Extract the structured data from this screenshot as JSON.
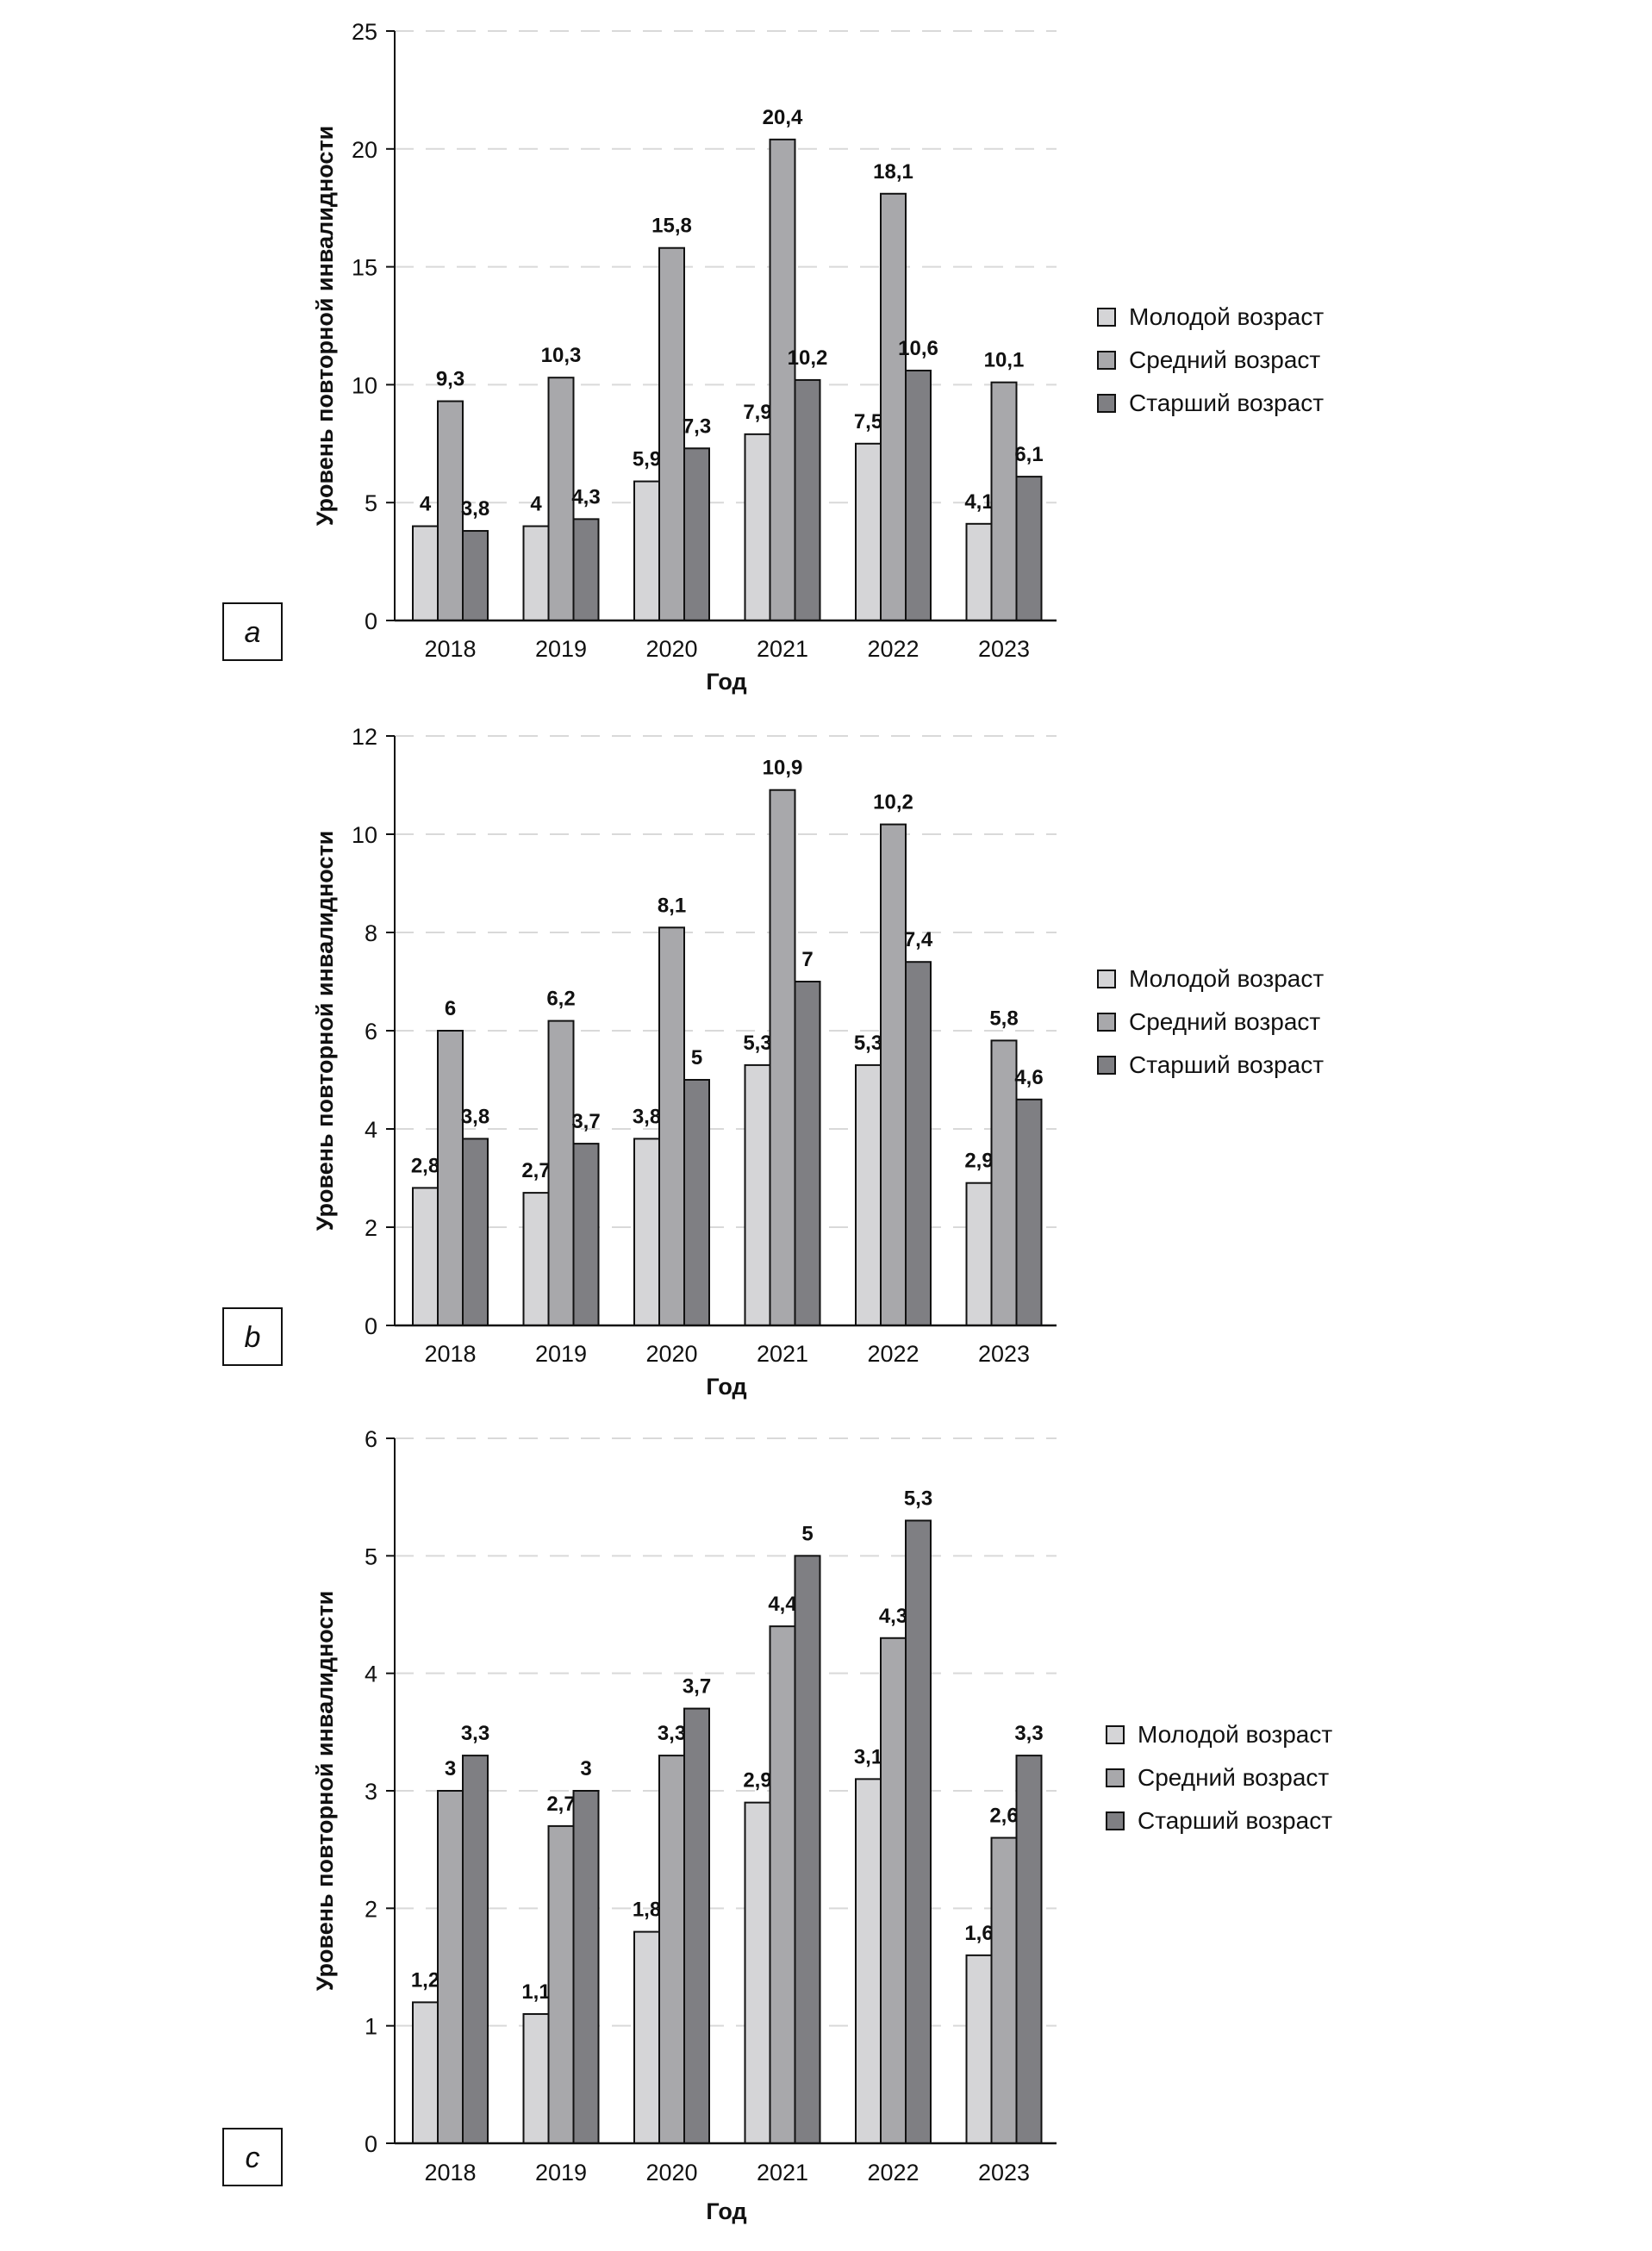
{
  "colors": {
    "young": "#d5d5d7",
    "middle": "#a8a8ab",
    "old": "#7f7f83",
    "grid": "#d9d9d9",
    "stroke": "#111111"
  },
  "chart_data": [
    {
      "type": "bar",
      "panel": "a",
      "xlabel": "Год",
      "ylabel": "Уровень повторной инвалидности",
      "ylim": [
        0,
        25
      ],
      "yticks": [
        0,
        5,
        10,
        15,
        20,
        25
      ],
      "grid": true,
      "legend_position": "right",
      "categories": [
        "2018",
        "2019",
        "2020",
        "2021",
        "2022",
        "2023"
      ],
      "series": [
        {
          "name": "Молодой возраст",
          "values": [
            4,
            4,
            5.9,
            7.9,
            7.5,
            4.1
          ],
          "labels": [
            "4",
            "4",
            "5,9",
            "7,9",
            "7,5",
            "4,1"
          ]
        },
        {
          "name": "Средний возраст",
          "values": [
            9.3,
            10.3,
            15.8,
            20.4,
            18.1,
            10.1
          ],
          "labels": [
            "9,3",
            "10,3",
            "15,8",
            "20,4",
            "18,1",
            "10,1"
          ]
        },
        {
          "name": "Старший возраст",
          "values": [
            3.8,
            4.3,
            7.3,
            10.2,
            10.6,
            6.1
          ],
          "labels": [
            "3,8",
            "4,3",
            "7,3",
            "10,2",
            "10,6",
            "6,1"
          ]
        }
      ]
    },
    {
      "type": "bar",
      "panel": "b",
      "xlabel": "Год",
      "ylabel": "Уровень повторной инвалидности",
      "ylim": [
        0,
        12
      ],
      "yticks": [
        0,
        2,
        4,
        6,
        8,
        10,
        12
      ],
      "grid": true,
      "legend_position": "right",
      "categories": [
        "2018",
        "2019",
        "2020",
        "2021",
        "2022",
        "2023"
      ],
      "series": [
        {
          "name": "Молодой возраст",
          "values": [
            2.8,
            2.7,
            3.8,
            5.3,
            5.3,
            2.9
          ],
          "labels": [
            "2,8",
            "2,7",
            "3,8",
            "5,3",
            "5,3",
            "2,9"
          ]
        },
        {
          "name": "Средний возраст",
          "values": [
            6,
            6.2,
            8.1,
            10.9,
            10.2,
            5.8
          ],
          "labels": [
            "6",
            "6,2",
            "8,1",
            "10,9",
            "10,2",
            "5,8"
          ]
        },
        {
          "name": "Старший возраст",
          "values": [
            3.8,
            3.7,
            5,
            7,
            7.4,
            4.6
          ],
          "labels": [
            "3,8",
            "3,7",
            "5",
            "7",
            "7,4",
            "4,6"
          ]
        }
      ]
    },
    {
      "type": "bar",
      "panel": "c",
      "xlabel": "Год",
      "ylabel": "Уровень повторной инвалидности",
      "ylim": [
        0,
        6
      ],
      "yticks": [
        0,
        1,
        2,
        3,
        4,
        5,
        6
      ],
      "grid": true,
      "legend_position": "right",
      "categories": [
        "2018",
        "2019",
        "2020",
        "2021",
        "2022",
        "2023"
      ],
      "series": [
        {
          "name": "Молодой возраст",
          "values": [
            1.2,
            1.1,
            1.8,
            2.9,
            3.1,
            1.6
          ],
          "labels": [
            "1,2",
            "1,1",
            "1,8",
            "2,9",
            "3,1",
            "1,6"
          ]
        },
        {
          "name": "Средний возраст",
          "values": [
            3,
            2.7,
            3.3,
            4.4,
            4.3,
            2.6
          ],
          "labels": [
            "3",
            "2,7",
            "3,3",
            "4,4",
            "4,3",
            "2,6"
          ]
        },
        {
          "name": "Старший возраст",
          "values": [
            3.3,
            3,
            3.7,
            5,
            5.3,
            3.3
          ],
          "labels": [
            "3,3",
            "3",
            "3,7",
            "5",
            "5,3",
            "3,3"
          ]
        }
      ]
    }
  ]
}
